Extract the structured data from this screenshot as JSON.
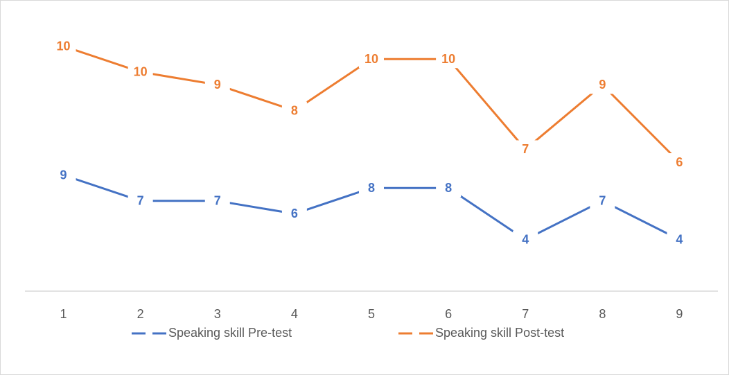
{
  "chart_data": {
    "type": "line",
    "stacked": true,
    "categories": [
      "1",
      "2",
      "3",
      "4",
      "5",
      "6",
      "7",
      "8",
      "9"
    ],
    "series": [
      {
        "name": "Speaking skill Pre-test",
        "color": "#4472c4",
        "values": [
          9,
          7,
          7,
          6,
          8,
          8,
          4,
          7,
          4
        ]
      },
      {
        "name": "Speaking skill Post-test",
        "color": "#ed7d31",
        "values": [
          10,
          10,
          9,
          8,
          10,
          10,
          7,
          9,
          6
        ]
      }
    ],
    "ylim": [
      0,
      20
    ],
    "legend": "bottom"
  }
}
